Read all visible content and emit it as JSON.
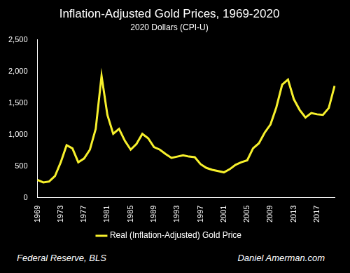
{
  "chart_data": {
    "type": "line",
    "title": "Inflation-Adjusted Gold Prices, 1969-2020",
    "subtitle": "2020 Dollars (CPI-U)",
    "categories": [
      "1969",
      null,
      null,
      null,
      "1973",
      null,
      null,
      null,
      "1977",
      null,
      null,
      null,
      "1981",
      null,
      null,
      null,
      "1985",
      null,
      null,
      null,
      "1989",
      null,
      null,
      null,
      "1993",
      null,
      null,
      null,
      "1997",
      null,
      null,
      null,
      "2001",
      null,
      null,
      null,
      "2005",
      null,
      null,
      null,
      "2009",
      null,
      null,
      null,
      "2013",
      null,
      null,
      null,
      "2017",
      null,
      null,
      null
    ],
    "series": [
      {
        "name": "Real (Inflation-Adjusted) Gold Price",
        "color": "#f7f02c",
        "values": [
          280,
          240,
          255,
          340,
          560,
          830,
          780,
          560,
          620,
          760,
          1090,
          1930,
          1310,
          1010,
          1090,
          900,
          760,
          850,
          1010,
          940,
          800,
          760,
          690,
          630,
          650,
          670,
          650,
          640,
          530,
          470,
          440,
          420,
          400,
          450,
          520,
          560,
          590,
          780,
          860,
          1030,
          1160,
          1430,
          1790,
          1870,
          1560,
          1390,
          1270,
          1340,
          1320,
          1310,
          1420,
          1770
        ]
      }
    ],
    "ylim": [
      0,
      2500
    ],
    "yticks": [
      0,
      500,
      1000,
      1500,
      2000,
      2500
    ],
    "grid": false,
    "legend": "bottom",
    "annotations": [
      "Federal Reserve, BLS",
      "Daniel Amerman.com"
    ]
  }
}
